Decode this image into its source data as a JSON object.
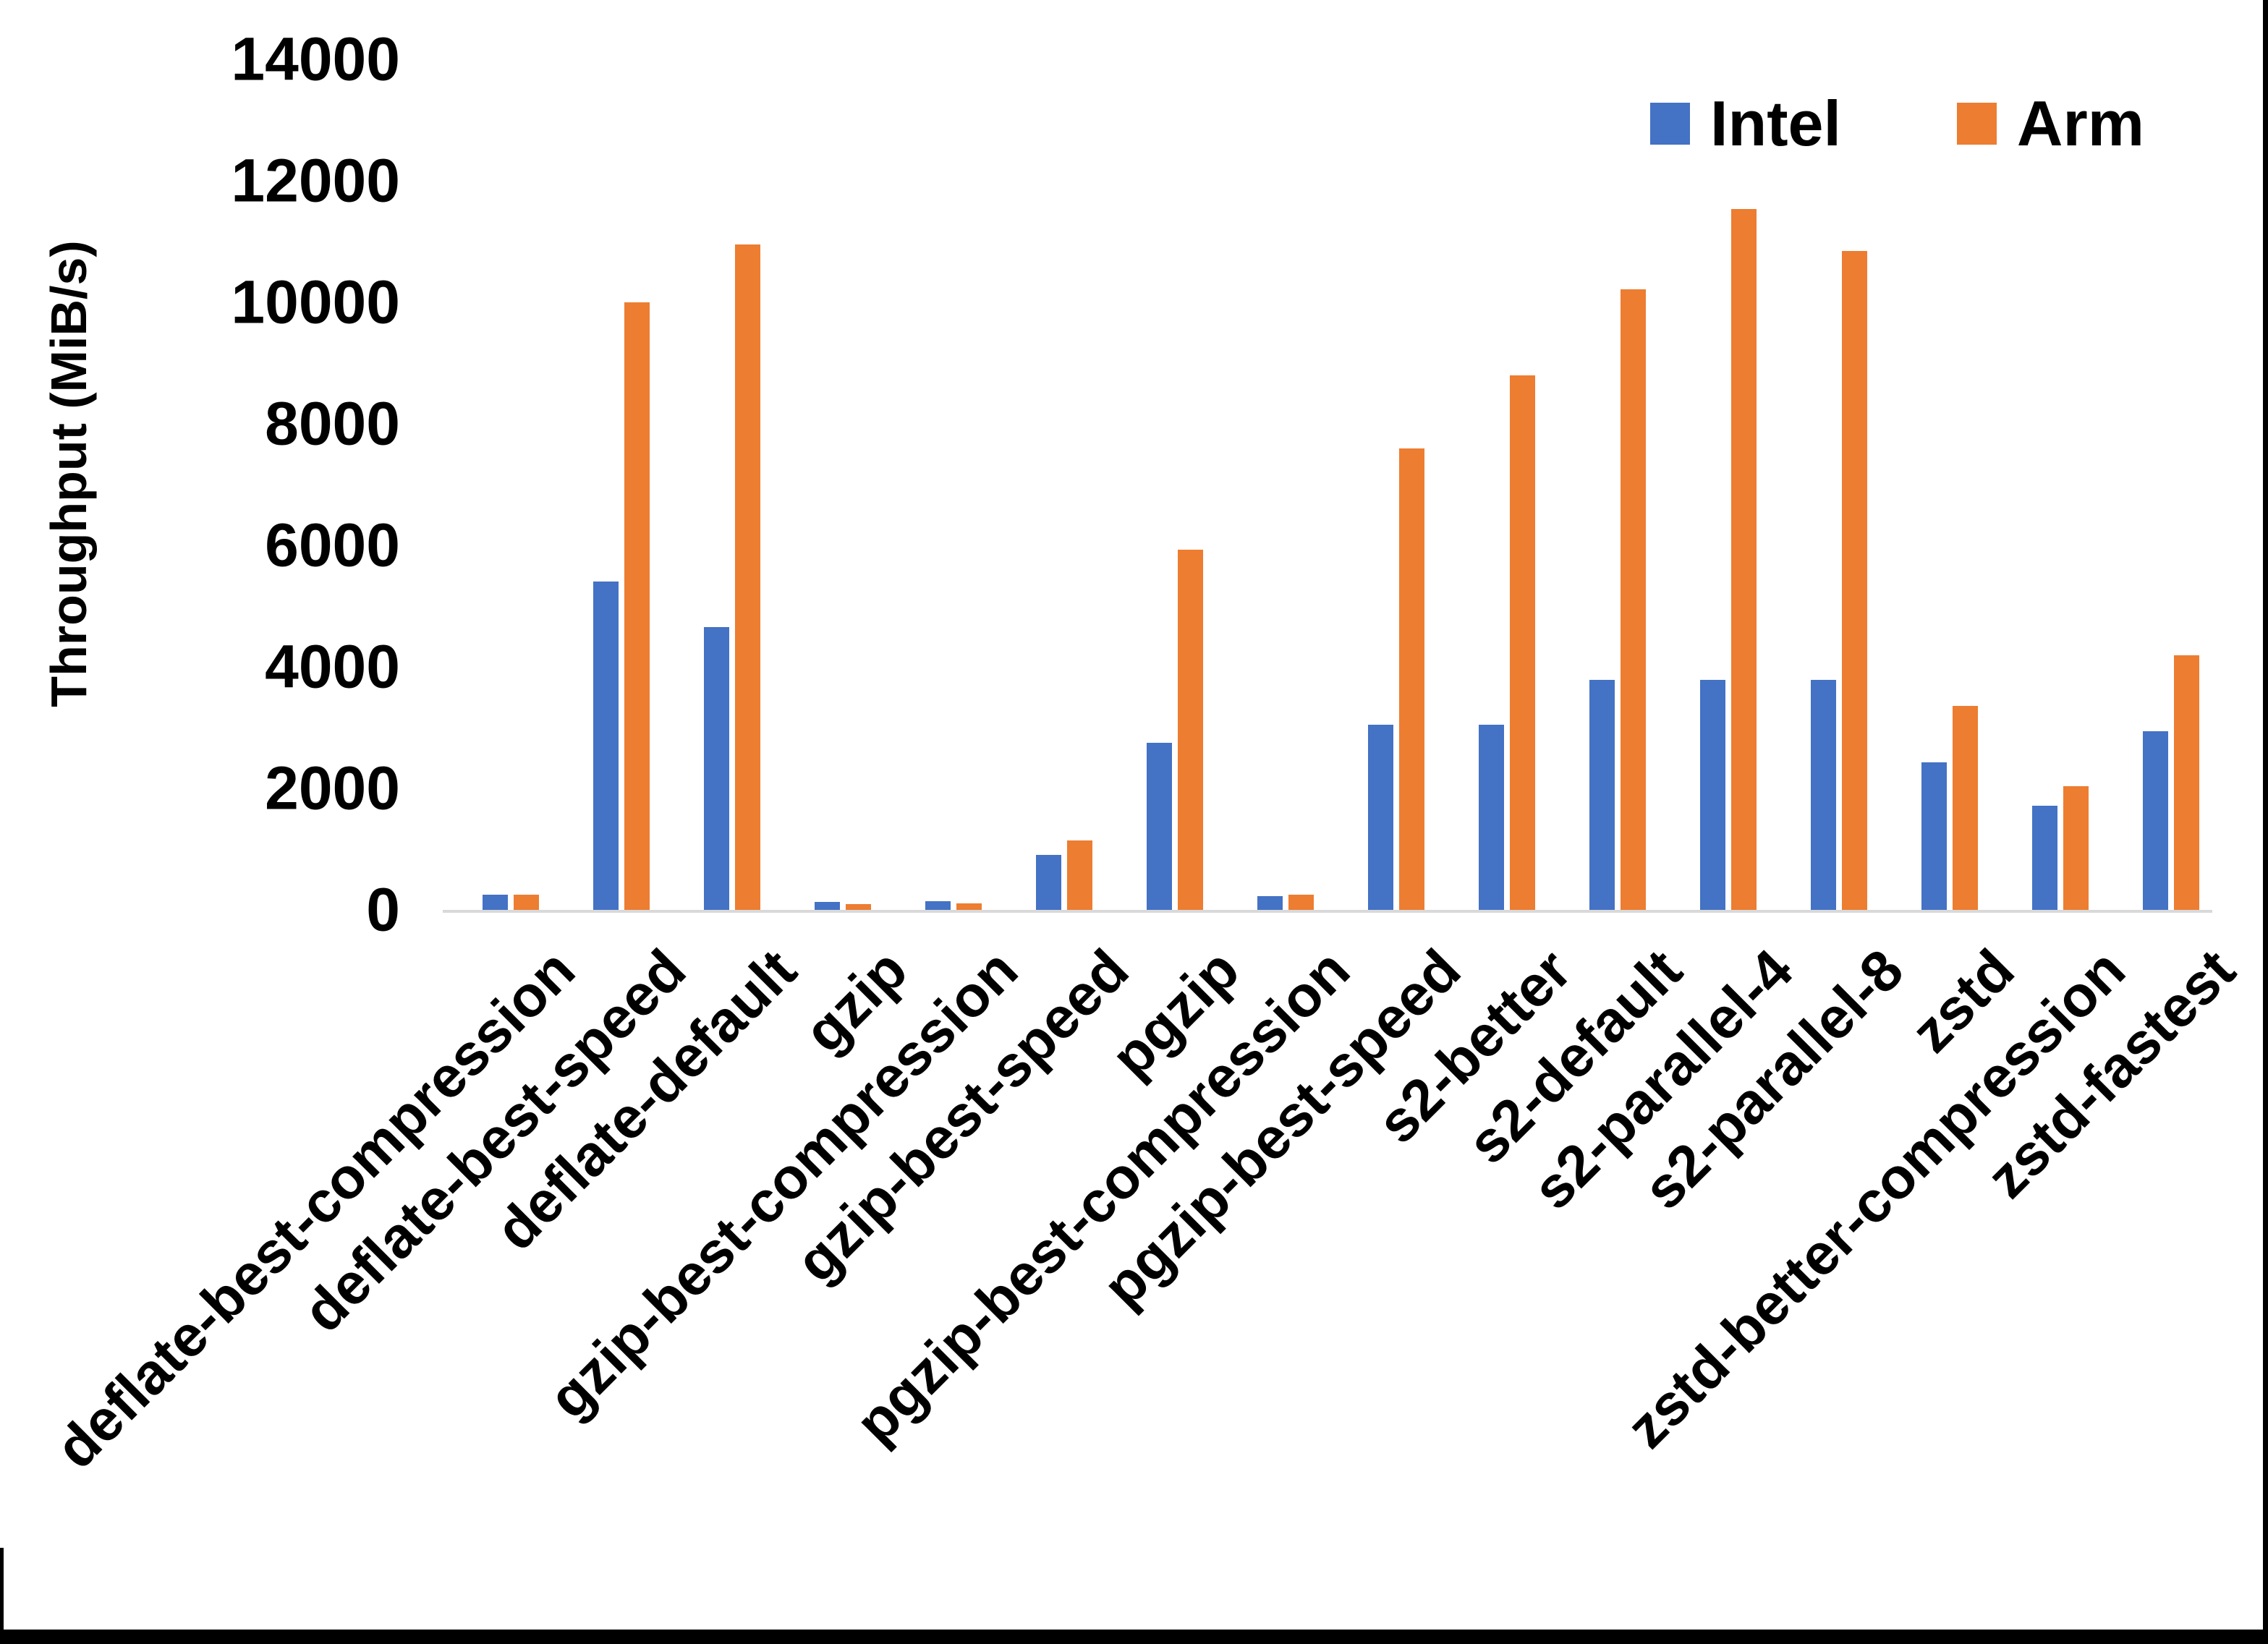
{
  "chart_data": {
    "type": "bar",
    "title": "",
    "xlabel": "",
    "ylabel": "Throughput (MiB/s)",
    "ylim": [
      0,
      14000
    ],
    "ytick_interval": 2000,
    "yticks": [
      "0",
      "2000",
      "4000",
      "6000",
      "8000",
      "10000",
      "12000",
      "14000"
    ],
    "grid": false,
    "legend_position": "top-right",
    "categories": [
      "deflate-best-compression",
      "deflate-best-speed",
      "deflate-default",
      "gzip",
      "gzip-best-compression",
      "gzip-best-speed",
      "pgzip",
      "pgzip-best-compression",
      "pgzip-best-speed",
      "s2-better",
      "s2-default",
      "s2-parallel-4",
      "s2-parallel-8",
      "zstd",
      "zstd-better-compression",
      "zstd-fastest"
    ],
    "series": [
      {
        "name": "Intel",
        "color": "#4472C4",
        "values": [
          250,
          5400,
          4650,
          130,
          140,
          900,
          2750,
          230,
          3050,
          3050,
          3780,
          3780,
          3780,
          2430,
          1720,
          2940
        ]
      },
      {
        "name": "Arm",
        "color": "#ED7D31",
        "values": [
          250,
          10000,
          10950,
          100,
          110,
          1140,
          5930,
          250,
          7600,
          8800,
          10220,
          11540,
          10850,
          3360,
          2030,
          4190
        ]
      }
    ]
  },
  "legend": {
    "items": [
      {
        "label": "Intel",
        "color": "#4472C4"
      },
      {
        "label": "Arm",
        "color": "#ED7D31"
      }
    ]
  },
  "axis_colors": {
    "baseline": "#d9d9d9",
    "text": "#000000"
  }
}
